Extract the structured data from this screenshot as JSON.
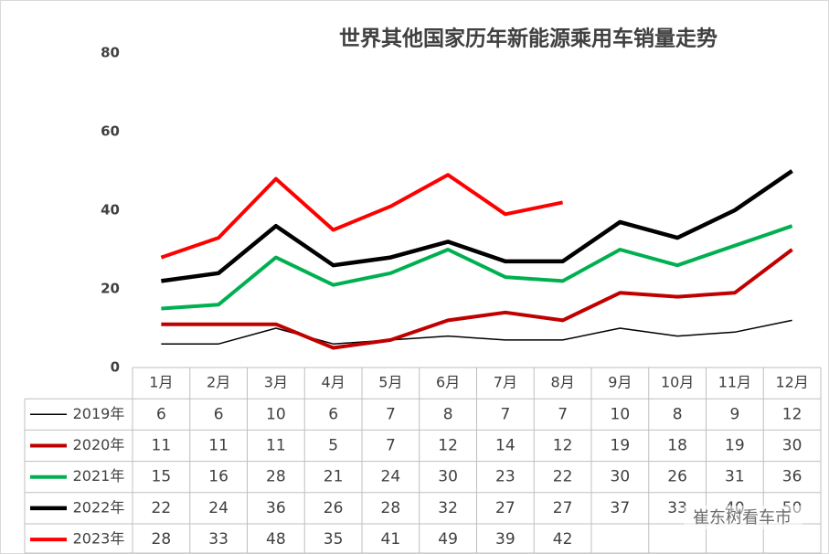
{
  "chart_data": {
    "type": "line",
    "title": "世界其他国家历年新能源乘用车销量走势",
    "categories": [
      "1月",
      "2月",
      "3月",
      "4月",
      "5月",
      "6月",
      "7月",
      "8月",
      "9月",
      "10月",
      "11月",
      "12月"
    ],
    "series": [
      {
        "name": "2019年",
        "color": "#000000",
        "line_width": 1.5,
        "values": [
          6,
          6,
          10,
          6,
          7,
          8,
          7,
          7,
          10,
          8,
          9,
          12
        ]
      },
      {
        "name": "2020年",
        "color": "#c00000",
        "line_width": 4,
        "values": [
          11,
          11,
          11,
          5,
          7,
          12,
          14,
          12,
          19,
          18,
          19,
          30
        ]
      },
      {
        "name": "2021年",
        "color": "#00b050",
        "line_width": 4,
        "values": [
          15,
          16,
          28,
          21,
          24,
          30,
          23,
          22,
          30,
          26,
          31,
          36
        ]
      },
      {
        "name": "2022年",
        "color": "#000000",
        "line_width": 4.5,
        "values": [
          22,
          24,
          36,
          26,
          28,
          32,
          27,
          27,
          37,
          33,
          40,
          50
        ]
      },
      {
        "name": "2023年",
        "color": "#ff0000",
        "line_width": 4,
        "values": [
          28,
          33,
          48,
          35,
          41,
          49,
          39,
          42,
          null,
          null,
          null,
          null
        ]
      }
    ],
    "ylim": [
      0,
      80
    ],
    "yticks": [
      0,
      20,
      40,
      60,
      80
    ],
    "grid": false,
    "watermark": "崔东树看车市"
  }
}
